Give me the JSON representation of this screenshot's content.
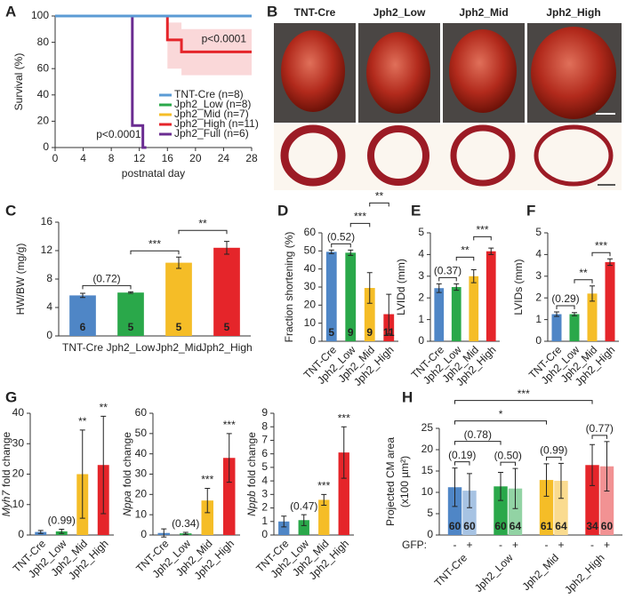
{
  "images": {
    "panel": "B",
    "labels": [
      "TNT-Cre",
      "Jph2_Low",
      "Jph2_Mid",
      "Jph2_High"
    ]
  },
  "chart_data": [
    {
      "panel": "A",
      "type": "survival",
      "xlabel": "postnatal day",
      "ylabel": "Survival (%)",
      "xlim": [
        0,
        28
      ],
      "xticks": [
        0,
        4,
        8,
        12,
        16,
        20,
        24,
        28
      ],
      "ylim": [
        0,
        100
      ],
      "yticks": [
        0,
        20,
        40,
        60,
        80,
        100
      ],
      "legend": "lower right",
      "series": [
        {
          "name": "TNT-Cre (n=8)",
          "color": "#5b9bd5",
          "x": [
            0,
            28
          ],
          "values": [
            100,
            100
          ]
        },
        {
          "name": "Jph2_Low (n=8)",
          "color": "#2aa84a",
          "x": [
            0,
            28
          ],
          "values": [
            100,
            100
          ]
        },
        {
          "name": "Jph2_Mid (n=7)",
          "color": "#f5bd27",
          "x": [
            0,
            28
          ],
          "values": [
            100,
            100
          ]
        },
        {
          "name": "Jph2_High (n=11)",
          "color": "#e5252a",
          "x": [
            0,
            16,
            16,
            18,
            18,
            28
          ],
          "values": [
            100,
            100,
            81.8,
            81.8,
            72.7,
            72.7
          ],
          "ci_low": [
            100,
            100,
            60,
            60,
            55,
            55
          ],
          "ci_high": [
            100,
            100,
            95,
            95,
            90,
            90
          ]
        },
        {
          "name": "Jph2_Full (n=6)",
          "color": "#6a2c91",
          "x": [
            0,
            11,
            11,
            12.5,
            12.5,
            13
          ],
          "values": [
            100,
            100,
            16.7,
            16.7,
            0,
            0
          ]
        }
      ],
      "annotations": [
        {
          "text": "p<0.0001",
          "series": 3
        },
        {
          "text": "p<0.0001",
          "series": 4
        }
      ]
    },
    {
      "panel": "C",
      "type": "bar",
      "ylabel": "HW/BW (mg/g)",
      "ylim": [
        0,
        16
      ],
      "yticks": [
        0,
        4,
        8,
        12,
        16
      ],
      "categories": [
        "TNT-Cre",
        "Jph2_Low",
        "Jph2_Mid",
        "Jph2_High"
      ],
      "values": [
        5.7,
        6.1,
        10.3,
        12.4
      ],
      "errors": [
        0.3,
        0.1,
        0.8,
        0.9
      ],
      "n": [
        6,
        5,
        5,
        5
      ],
      "colors": [
        "#4f86c6",
        "#2aa84a",
        "#f5bd27",
        "#e5252a"
      ],
      "annotations": [
        {
          "text": "(0.72)",
          "between": [
            0,
            1
          ]
        },
        {
          "text": "***",
          "between": [
            1,
            2
          ]
        },
        {
          "text": "**",
          "between": [
            2,
            3
          ]
        }
      ]
    },
    {
      "panel": "D",
      "type": "bar",
      "ylabel": "Fraction shortening (%)",
      "ylim": [
        0,
        60
      ],
      "yticks": [
        0,
        10,
        20,
        30,
        40,
        50,
        60
      ],
      "categories": [
        "TNT-Cre",
        "Jph2_Low",
        "Jph2_Mid",
        "Jph2_High"
      ],
      "values": [
        49.5,
        49,
        29.5,
        15
      ],
      "errors": [
        1,
        1.5,
        8.5,
        11
      ],
      "n": [
        5,
        9,
        9,
        11
      ],
      "colors": [
        "#4f86c6",
        "#2aa84a",
        "#f5bd27",
        "#e5252a"
      ],
      "annotations": [
        {
          "text": "(0.52)",
          "between": [
            0,
            1
          ]
        },
        {
          "text": "***",
          "between": [
            1,
            2
          ]
        },
        {
          "text": "**",
          "between": [
            2,
            3
          ]
        }
      ]
    },
    {
      "panel": "E",
      "type": "bar",
      "ylabel": "LVIDd (mm)",
      "ylim": [
        0,
        5
      ],
      "yticks": [
        0,
        1,
        2,
        3,
        4,
        5
      ],
      "categories": [
        "TNT-Cre",
        "Jph2_Low",
        "Jph2_Mid",
        "Jph2_High"
      ],
      "values": [
        2.45,
        2.5,
        3.0,
        4.15
      ],
      "errors": [
        0.2,
        0.15,
        0.3,
        0.15
      ],
      "colors": [
        "#4f86c6",
        "#2aa84a",
        "#f5bd27",
        "#e5252a"
      ],
      "annotations": [
        {
          "text": "(0.37)",
          "between": [
            0,
            1
          ]
        },
        {
          "text": "**",
          "between": [
            1,
            2
          ]
        },
        {
          "text": "***",
          "between": [
            2,
            3
          ]
        }
      ]
    },
    {
      "panel": "F",
      "type": "bar",
      "ylabel": "LVIDs (mm)",
      "ylim": [
        0,
        5
      ],
      "yticks": [
        0,
        1,
        2,
        3,
        4,
        5
      ],
      "categories": [
        "TNT-Cre",
        "Jph2_Low",
        "Jph2_Mid",
        "Jph2_High"
      ],
      "values": [
        1.25,
        1.25,
        2.2,
        3.65
      ],
      "errors": [
        0.1,
        0.07,
        0.35,
        0.15
      ],
      "colors": [
        "#4f86c6",
        "#2aa84a",
        "#f5bd27",
        "#e5252a"
      ],
      "annotations": [
        {
          "text": "(0.29)",
          "between": [
            0,
            1
          ]
        },
        {
          "text": "**",
          "between": [
            1,
            2
          ]
        },
        {
          "text": "***",
          "between": [
            2,
            3
          ]
        }
      ]
    },
    {
      "panel": "G",
      "type": "bar",
      "ylabel_gene": "Myh7",
      "ylabel": "fold change",
      "ylim": [
        0,
        40
      ],
      "yticks": [
        0,
        10,
        20,
        30,
        40
      ],
      "categories": [
        "TNT-Cre",
        "Jph2_Low",
        "Jph2_Mid",
        "Jph2_High"
      ],
      "values": [
        1,
        1.2,
        20,
        23
      ],
      "errors": [
        0.5,
        0.7,
        14.5,
        16
      ],
      "colors": [
        "#4f86c6",
        "#2aa84a",
        "#f5bd27",
        "#e5252a"
      ],
      "annotations": [
        {
          "text": "(0.99)",
          "between": [
            1
          ]
        },
        {
          "text": "**",
          "between": [
            2
          ]
        },
        {
          "text": "**",
          "between": [
            3
          ]
        }
      ]
    },
    {
      "type": "bar",
      "ylabel_gene": "Nppa",
      "ylabel": "fold change",
      "ylim": [
        0,
        60
      ],
      "yticks": [
        0,
        10,
        20,
        30,
        40,
        50,
        60
      ],
      "categories": [
        "TNT-Cre",
        "Jph2_Low",
        "Jph2_Mid",
        "Jph2_High"
      ],
      "values": [
        1,
        0.8,
        17,
        38
      ],
      "errors": [
        2,
        0.5,
        6,
        12
      ],
      "colors": [
        "#4f86c6",
        "#2aa84a",
        "#f5bd27",
        "#e5252a"
      ],
      "annotations": [
        {
          "text": "(0.34)",
          "between": [
            1
          ]
        },
        {
          "text": "***",
          "between": [
            2
          ]
        },
        {
          "text": "***",
          "between": [
            3
          ]
        }
      ]
    },
    {
      "type": "bar",
      "ylabel_gene": "Nppb",
      "ylabel": "fold change",
      "ylim": [
        0,
        9
      ],
      "yticks": [
        0,
        1,
        2,
        3,
        4,
        5,
        6,
        7,
        8,
        9
      ],
      "categories": [
        "TNT-Cre",
        "Jph2_Low",
        "Jph2_Mid",
        "Jph2_High"
      ],
      "values": [
        1,
        1.1,
        2.6,
        6.1
      ],
      "errors": [
        0.4,
        0.4,
        0.4,
        1.9
      ],
      "colors": [
        "#4f86c6",
        "#2aa84a",
        "#f5bd27",
        "#e5252a"
      ],
      "annotations": [
        {
          "text": "(0.47)",
          "between": [
            1
          ]
        },
        {
          "text": "***",
          "between": [
            2
          ]
        },
        {
          "text": "***",
          "between": [
            3
          ]
        }
      ]
    },
    {
      "panel": "H",
      "type": "grouped_bar",
      "ylabel": "Projected CM area",
      "ylabel2": "(x100 µm²)",
      "ylim": [
        0,
        25
      ],
      "yticks": [
        0,
        5,
        10,
        15,
        20,
        25
      ],
      "legend_title": "GFP:",
      "categories": [
        "TNT-Cre",
        "Jph2_Low",
        "Jph2_Mid",
        "Jph2_High"
      ],
      "series": [
        {
          "name": "-",
          "colors": [
            "#4f86c6",
            "#2aa84a",
            "#f5bd27",
            "#e5252a"
          ],
          "values": [
            11.2,
            11.4,
            12.9,
            16.4
          ],
          "errors": [
            4.5,
            3.3,
            3.8,
            4.8
          ],
          "n": [
            60,
            60,
            61,
            34
          ]
        },
        {
          "name": "+",
          "colors": [
            "#a7c3e3",
            "#92d3a4",
            "#fadb8f",
            "#f29293"
          ],
          "values": [
            10.4,
            10.9,
            12.7,
            16.1
          ],
          "errors": [
            4,
            4.7,
            4.1,
            5.8
          ],
          "n": [
            60,
            64,
            64,
            60
          ]
        }
      ],
      "annotations": [
        {
          "text": "(0.19)",
          "between": [
            0
          ]
        },
        {
          "text": "(0.50)",
          "between": [
            1
          ]
        },
        {
          "text": "(0.99)",
          "between": [
            2
          ]
        },
        {
          "text": "(0.77)",
          "between": [
            3
          ]
        },
        {
          "text": "(0.78)",
          "between": [
            0,
            1
          ]
        },
        {
          "text": "*",
          "between": [
            0,
            2
          ]
        },
        {
          "text": "***",
          "between": [
            0,
            3
          ]
        }
      ]
    }
  ]
}
